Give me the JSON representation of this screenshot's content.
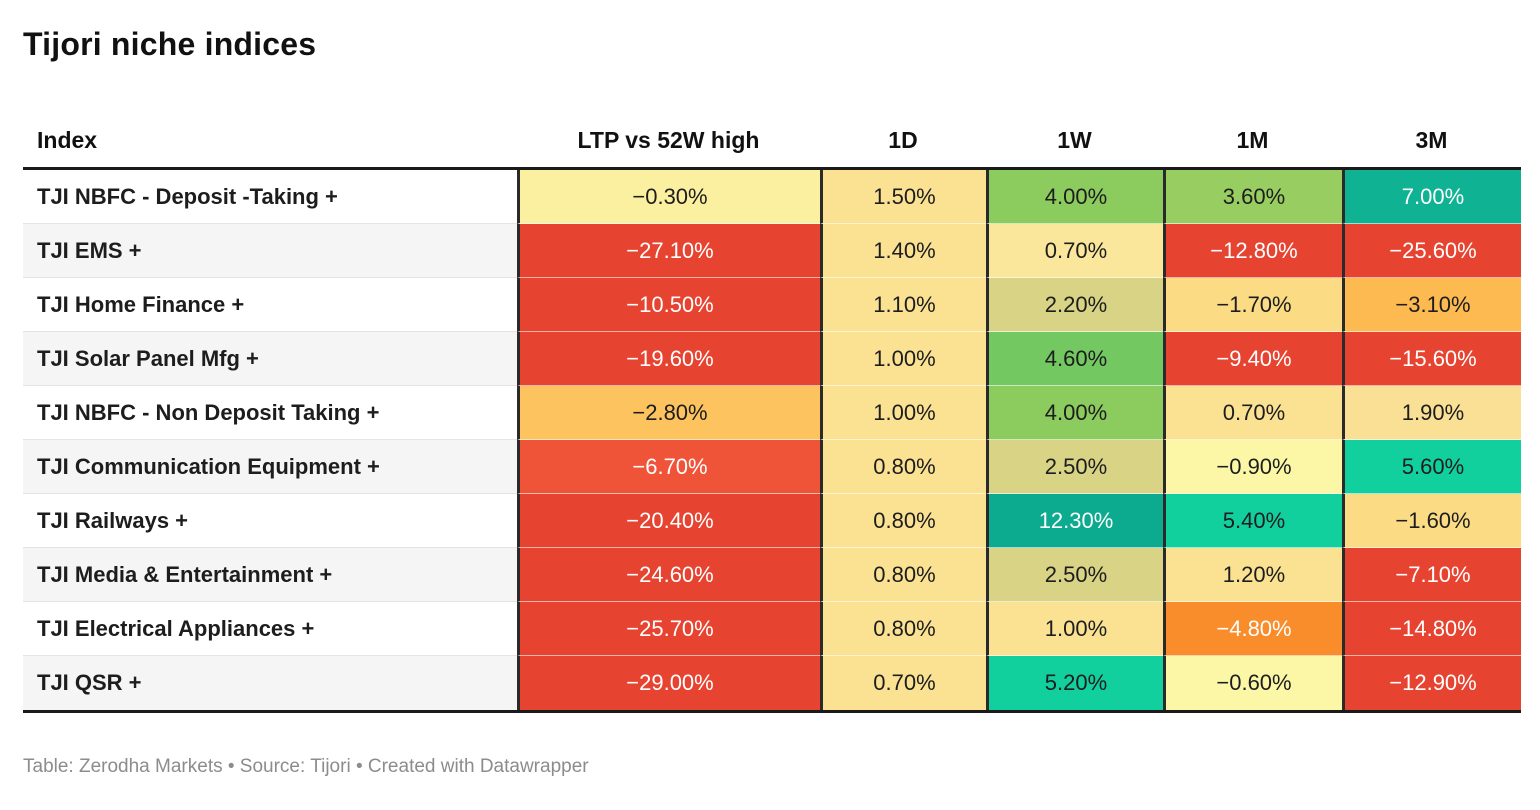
{
  "page": {
    "title": "Tijori niche indices",
    "footer": "Table: Zerodha Markets • Source: Tijori • Created with Datawrapper"
  },
  "chart_data": {
    "type": "table",
    "title": "Tijori niche indices",
    "columns": [
      "Index",
      "LTP vs 52W high",
      "1D",
      "1W",
      "1M",
      "3M"
    ],
    "legend_note": "cell background encodes value: red = strongly negative, yellow = near zero, green/teal = positive",
    "palette": {
      "red": "#e74331",
      "red_orange": "#ef5338",
      "orange": "#fdc35f",
      "orange_deep": "#f98d2b",
      "gold": "#fae292",
      "pale_yellow": "#fbf7a6",
      "olive": "#d9d385",
      "green": "#8ccb5e",
      "teal_bright": "#12cf9e",
      "teal": "#0fb394",
      "teal_deep": "#0caa8e",
      "text_dark": "#1d1d1d",
      "text_light": "#ffffff"
    },
    "rows": [
      {
        "index": "TJI NBFC - Deposit -Taking +",
        "values": {
          "ltp_vs_52w_high": -0.3,
          "d1": 1.5,
          "w1": 4.0,
          "m1": 3.6,
          "m3": 7.0
        },
        "cells": [
          {
            "label": "−0.30%",
            "bg": "#faf0a0",
            "fg": "#1d1d1d"
          },
          {
            "label": "1.50%",
            "bg": "#fae292",
            "fg": "#1d1d1d"
          },
          {
            "label": "4.00%",
            "bg": "#8ccb5e",
            "fg": "#1d1d1d"
          },
          {
            "label": "3.60%",
            "bg": "#98ce61",
            "fg": "#1d1d1d"
          },
          {
            "label": "7.00%",
            "bg": "#0fb394",
            "fg": "#ffffff"
          }
        ]
      },
      {
        "index": "TJI EMS +",
        "values": {
          "ltp_vs_52w_high": -27.1,
          "d1": 1.4,
          "w1": 0.7,
          "m1": -12.8,
          "m3": -25.6
        },
        "cells": [
          {
            "label": "−27.10%",
            "bg": "#e74331",
            "fg": "#ffffff"
          },
          {
            "label": "1.40%",
            "bg": "#fae292",
            "fg": "#1d1d1d"
          },
          {
            "label": "0.70%",
            "bg": "#fae79b",
            "fg": "#1d1d1d"
          },
          {
            "label": "−12.80%",
            "bg": "#e74331",
            "fg": "#ffffff"
          },
          {
            "label": "−25.60%",
            "bg": "#e74331",
            "fg": "#ffffff"
          }
        ]
      },
      {
        "index": "TJI Home Finance +",
        "values": {
          "ltp_vs_52w_high": -10.5,
          "d1": 1.1,
          "w1": 2.2,
          "m1": -1.7,
          "m3": -3.1
        },
        "cells": [
          {
            "label": "−10.50%",
            "bg": "#e74331",
            "fg": "#ffffff"
          },
          {
            "label": "1.10%",
            "bg": "#fae292",
            "fg": "#1d1d1d"
          },
          {
            "label": "2.20%",
            "bg": "#d9d385",
            "fg": "#1d1d1d"
          },
          {
            "label": "−1.70%",
            "bg": "#fbdc85",
            "fg": "#1d1d1d"
          },
          {
            "label": "−3.10%",
            "bg": "#fcba50",
            "fg": "#1d1d1d"
          }
        ]
      },
      {
        "index": "TJI Solar Panel Mfg +",
        "values": {
          "ltp_vs_52w_high": -19.6,
          "d1": 1.0,
          "w1": 4.6,
          "m1": -9.4,
          "m3": -15.6
        },
        "cells": [
          {
            "label": "−19.60%",
            "bg": "#e74331",
            "fg": "#ffffff"
          },
          {
            "label": "1.00%",
            "bg": "#fae292",
            "fg": "#1d1d1d"
          },
          {
            "label": "4.60%",
            "bg": "#74c862",
            "fg": "#1d1d1d"
          },
          {
            "label": "−9.40%",
            "bg": "#e74331",
            "fg": "#ffffff"
          },
          {
            "label": "−15.60%",
            "bg": "#e74331",
            "fg": "#ffffff"
          }
        ]
      },
      {
        "index": "TJI NBFC - Non Deposit Taking +",
        "values": {
          "ltp_vs_52w_high": -2.8,
          "d1": 1.0,
          "w1": 4.0,
          "m1": 0.7,
          "m3": 1.9
        },
        "cells": [
          {
            "label": "−2.80%",
            "bg": "#fdc35f",
            "fg": "#1d1d1d"
          },
          {
            "label": "1.00%",
            "bg": "#fae292",
            "fg": "#1d1d1d"
          },
          {
            "label": "4.00%",
            "bg": "#8ccb5e",
            "fg": "#1d1d1d"
          },
          {
            "label": "0.70%",
            "bg": "#fae292",
            "fg": "#1d1d1d"
          },
          {
            "label": "1.90%",
            "bg": "#f9e094",
            "fg": "#1d1d1d"
          }
        ]
      },
      {
        "index": "TJI Communication Equipment +",
        "values": {
          "ltp_vs_52w_high": -6.7,
          "d1": 0.8,
          "w1": 2.5,
          "m1": -0.9,
          "m3": 5.6
        },
        "cells": [
          {
            "label": "−6.70%",
            "bg": "#ef5338",
            "fg": "#ffffff"
          },
          {
            "label": "0.80%",
            "bg": "#fae292",
            "fg": "#1d1d1d"
          },
          {
            "label": "2.50%",
            "bg": "#d9d385",
            "fg": "#1d1d1d"
          },
          {
            "label": "−0.90%",
            "bg": "#fbf7a6",
            "fg": "#1d1d1d"
          },
          {
            "label": "5.60%",
            "bg": "#12cf9e",
            "fg": "#1d1d1d"
          }
        ]
      },
      {
        "index": "TJI Railways +",
        "values": {
          "ltp_vs_52w_high": -20.4,
          "d1": 0.8,
          "w1": 12.3,
          "m1": 5.4,
          "m3": -1.6
        },
        "cells": [
          {
            "label": "−20.40%",
            "bg": "#e74331",
            "fg": "#ffffff"
          },
          {
            "label": "0.80%",
            "bg": "#fae292",
            "fg": "#1d1d1d"
          },
          {
            "label": "12.30%",
            "bg": "#0caa8e",
            "fg": "#ffffff"
          },
          {
            "label": "5.40%",
            "bg": "#12cf9e",
            "fg": "#1d1d1d"
          },
          {
            "label": "−1.60%",
            "bg": "#fbdc85",
            "fg": "#1d1d1d"
          }
        ]
      },
      {
        "index": "TJI Media & Entertainment +",
        "values": {
          "ltp_vs_52w_high": -24.6,
          "d1": 0.8,
          "w1": 2.5,
          "m1": 1.2,
          "m3": -7.1
        },
        "cells": [
          {
            "label": "−24.60%",
            "bg": "#e74331",
            "fg": "#ffffff"
          },
          {
            "label": "0.80%",
            "bg": "#fae292",
            "fg": "#1d1d1d"
          },
          {
            "label": "2.50%",
            "bg": "#d9d385",
            "fg": "#1d1d1d"
          },
          {
            "label": "1.20%",
            "bg": "#fae292",
            "fg": "#1d1d1d"
          },
          {
            "label": "−7.10%",
            "bg": "#e74331",
            "fg": "#ffffff"
          }
        ]
      },
      {
        "index": "TJI Electrical Appliances +",
        "values": {
          "ltp_vs_52w_high": -25.7,
          "d1": 0.8,
          "w1": 1.0,
          "m1": -4.8,
          "m3": -14.8
        },
        "cells": [
          {
            "label": "−25.70%",
            "bg": "#e74331",
            "fg": "#ffffff"
          },
          {
            "label": "0.80%",
            "bg": "#fae292",
            "fg": "#1d1d1d"
          },
          {
            "label": "1.00%",
            "bg": "#fae292",
            "fg": "#1d1d1d"
          },
          {
            "label": "−4.80%",
            "bg": "#f98d2b",
            "fg": "#ffffff"
          },
          {
            "label": "−14.80%",
            "bg": "#e74331",
            "fg": "#ffffff"
          }
        ]
      },
      {
        "index": "TJI QSR +",
        "values": {
          "ltp_vs_52w_high": -29.0,
          "d1": 0.7,
          "w1": 5.2,
          "m1": -0.6,
          "m3": -12.9
        },
        "cells": [
          {
            "label": "−29.00%",
            "bg": "#e74331",
            "fg": "#ffffff"
          },
          {
            "label": "0.70%",
            "bg": "#fae292",
            "fg": "#1d1d1d"
          },
          {
            "label": "5.20%",
            "bg": "#12cf9e",
            "fg": "#1d1d1d"
          },
          {
            "label": "−0.60%",
            "bg": "#fbf7a6",
            "fg": "#1d1d1d"
          },
          {
            "label": "−12.90%",
            "bg": "#e74331",
            "fg": "#ffffff"
          }
        ]
      }
    ],
    "footer": "Table: Zerodha Markets • Source: Tijori • Created with Datawrapper"
  }
}
